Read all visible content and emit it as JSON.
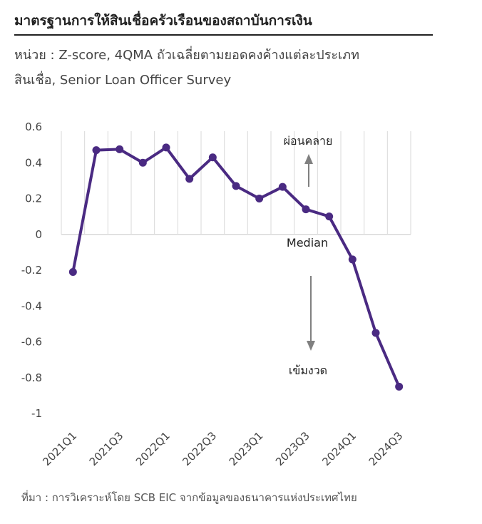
{
  "title": "มาตรฐานการให้สินเชื่อครัวเรือนของสถาบันการเงิน",
  "subtitle_line1": "หน่วย : Z-score, 4QMA ถัวเฉลี่ยตามยอดคงค้างแต่ละประเภท",
  "subtitle_line2": "สินเชื่อ, Senior Loan Officer Survey",
  "source": "ที่มา : การวิเคราะห์โดย SCB EIC จากข้อมูลของธนาคารแห่งประเทศไทย",
  "colors": {
    "line": "#4a2a82",
    "grid": "#d9d9d9",
    "arrow": "#808080"
  },
  "chart_data": {
    "type": "line",
    "x": [
      "2021Q1",
      "2021Q2",
      "2021Q3",
      "2021Q4",
      "2022Q1",
      "2022Q2",
      "2022Q3",
      "2022Q4",
      "2023Q1",
      "2023Q2",
      "2023Q3",
      "2023Q4",
      "2024Q1",
      "2024Q2",
      "2024Q3"
    ],
    "x_tick_labels": [
      "2021Q1",
      "2021Q3",
      "2022Q1",
      "2022Q3",
      "2023Q1",
      "2023Q3",
      "2024Q1",
      "2024Q3"
    ],
    "series": [
      {
        "values": [
          -0.21,
          0.47,
          0.475,
          0.4,
          0.485,
          0.31,
          0.43,
          0.27,
          0.2,
          0.265,
          0.14,
          0.1,
          -0.14,
          -0.55,
          -0.85
        ]
      }
    ],
    "ylim": [
      -1,
      0.6
    ],
    "y_ticks": [
      0.6,
      0.4,
      0.2,
      0,
      -0.2,
      -0.4,
      -0.6,
      -0.8,
      -1
    ],
    "y_tick_labels": [
      "0.6",
      "0.4",
      "0.2",
      "0",
      "-0.2",
      "-0.4",
      "-0.6",
      "-0.8",
      "-1"
    ],
    "grid": "vertical",
    "annotations": {
      "up": "ผ่อนคลาย",
      "median": "Median",
      "down": "เข้มงวด"
    }
  }
}
